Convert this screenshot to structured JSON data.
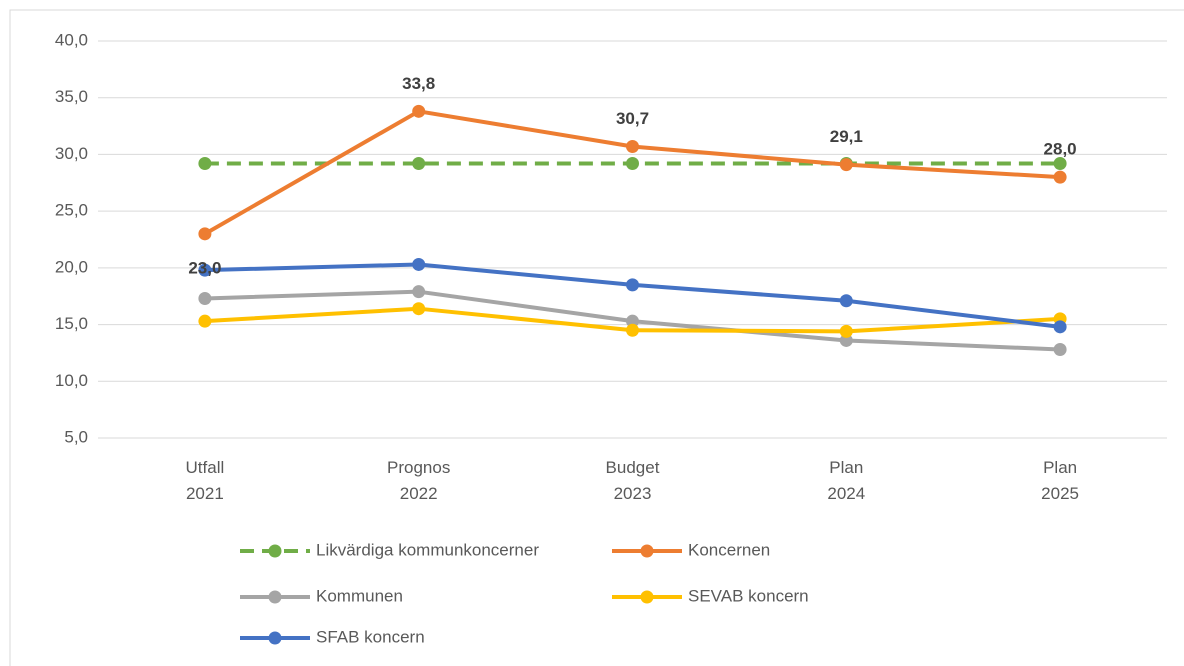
{
  "chart_data": {
    "type": "line",
    "categories": [
      "Utfall\n2021",
      "Prognos\n2022",
      "Budget\n2023",
      "Plan\n2024",
      "Plan\n2025"
    ],
    "series": [
      {
        "name": "Likvärdiga kommunkoncerner",
        "color": "#70ad47",
        "dashed": true,
        "values": [
          29.2,
          29.2,
          29.2,
          29.2,
          29.2
        ]
      },
      {
        "name": "Koncernen",
        "color": "#ed7d31",
        "values": [
          23.0,
          33.8,
          30.7,
          29.1,
          28.0
        ],
        "value_labels": [
          "23,0",
          "33,8",
          "30,7",
          "29,1",
          "28,0"
        ]
      },
      {
        "name": "Kommunen",
        "color": "#a5a5a5",
        "values": [
          17.3,
          17.9,
          15.3,
          13.6,
          12.8
        ]
      },
      {
        "name": "SEVAB koncern",
        "color": "#ffc000",
        "values": [
          15.3,
          16.4,
          14.5,
          14.4,
          15.5
        ]
      },
      {
        "name": "SFAB koncern",
        "color": "#4472c4",
        "values": [
          19.8,
          20.3,
          18.5,
          17.1,
          14.8
        ]
      }
    ],
    "ylim": [
      5,
      40
    ],
    "yticks": [
      {
        "value": 5,
        "label": "5,0"
      },
      {
        "value": 10,
        "label": "10,0"
      },
      {
        "value": 15,
        "label": "15,0"
      },
      {
        "value": 20,
        "label": "20,0"
      },
      {
        "value": 25,
        "label": "25,0"
      },
      {
        "value": 30,
        "label": "30,0"
      },
      {
        "value": 35,
        "label": "35,0"
      },
      {
        "value": 40,
        "label": "40,0"
      }
    ],
    "grid": true
  }
}
